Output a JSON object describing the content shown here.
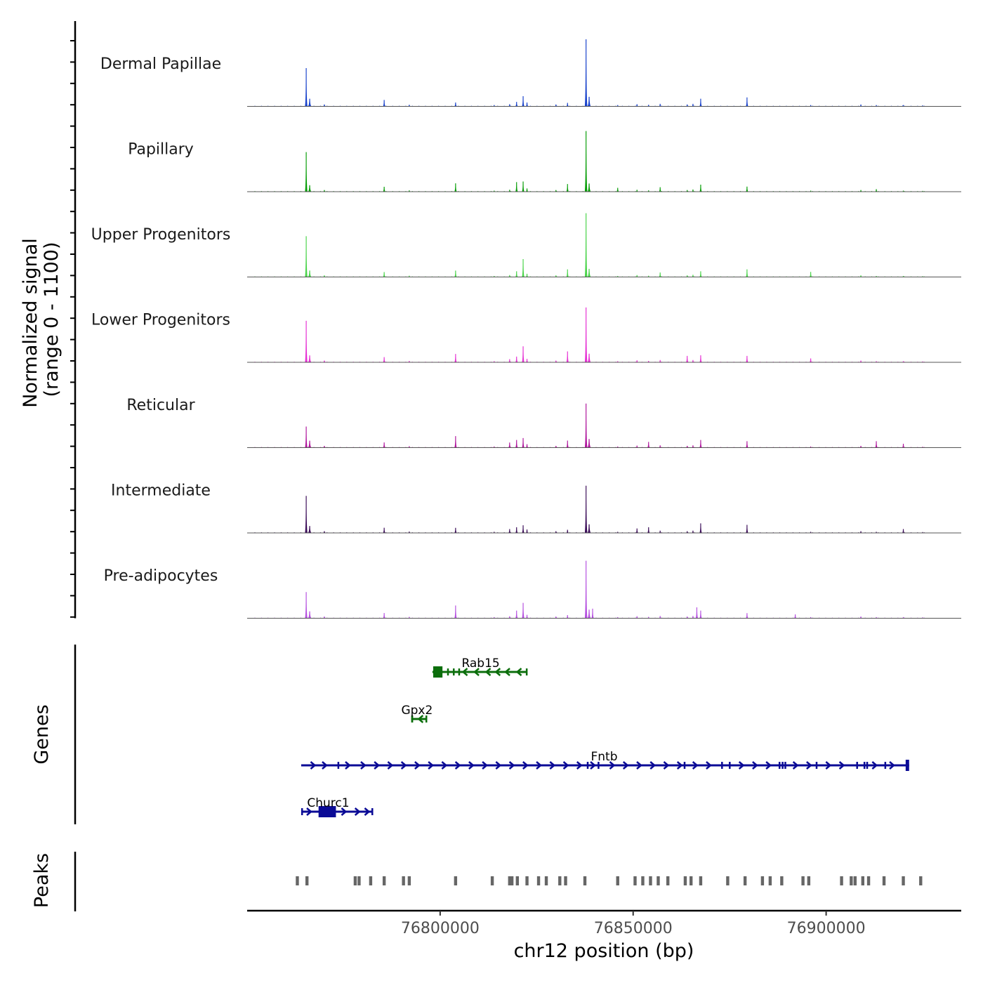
{
  "chart_data": {
    "type": "area",
    "title": "",
    "ylabel_line1": "Normalized signal",
    "ylabel_line2": "(range 0 - 1100)",
    "ylim": [
      0,
      1100
    ],
    "xlabel": "chr12 position (bp)",
    "xlim": [
      76750000,
      76935000
    ],
    "xticks": [
      {
        "value": 76800000,
        "label": "76800000"
      },
      {
        "value": 76850000,
        "label": "76850000"
      },
      {
        "value": 76900000,
        "label": "76900000"
      }
    ],
    "genes_label": "Genes",
    "peaks_label": "Peaks",
    "peak_template": [
      {
        "pos": 76765300,
        "h": 1000,
        "w": 350
      },
      {
        "pos": 76766200,
        "h": 120,
        "w": 500
      },
      {
        "pos": 76770000,
        "h": 30,
        "w": 400
      },
      {
        "pos": 76785500,
        "h": 90,
        "w": 250
      },
      {
        "pos": 76792000,
        "h": 25,
        "w": 250
      },
      {
        "pos": 76804000,
        "h": 60,
        "w": 250
      },
      {
        "pos": 76814000,
        "h": 20,
        "w": 250
      },
      {
        "pos": 76818000,
        "h": 35,
        "w": 300
      },
      {
        "pos": 76819800,
        "h": 70,
        "w": 300
      },
      {
        "pos": 76821500,
        "h": 110,
        "w": 350
      },
      {
        "pos": 76822500,
        "h": 60,
        "w": 300
      },
      {
        "pos": 76830000,
        "h": 30,
        "w": 250
      },
      {
        "pos": 76833000,
        "h": 55,
        "w": 250
      },
      {
        "pos": 76837800,
        "h": 1050,
        "w": 380
      },
      {
        "pos": 76838600,
        "h": 150,
        "w": 500
      },
      {
        "pos": 76846000,
        "h": 20,
        "w": 250
      },
      {
        "pos": 76851000,
        "h": 35,
        "w": 250
      },
      {
        "pos": 76854000,
        "h": 25,
        "w": 250
      },
      {
        "pos": 76857000,
        "h": 40,
        "w": 250
      },
      {
        "pos": 76864000,
        "h": 30,
        "w": 250
      },
      {
        "pos": 76865500,
        "h": 40,
        "w": 250
      },
      {
        "pos": 76867500,
        "h": 120,
        "w": 250
      },
      {
        "pos": 76879500,
        "h": 140,
        "w": 250
      },
      {
        "pos": 76896000,
        "h": 20,
        "w": 250
      },
      {
        "pos": 76909000,
        "h": 30,
        "w": 300
      },
      {
        "pos": 76913000,
        "h": 20,
        "w": 250
      },
      {
        "pos": 76920000,
        "h": 20,
        "w": 250
      },
      {
        "pos": 76925000,
        "h": 15,
        "w": 250
      }
    ],
    "series": [
      {
        "name": "Dermal Papillae",
        "color": "#1b44cc",
        "scale": 1.0,
        "overrides": {
          "76837800": 1050,
          "76765300": 600,
          "76821500": 160,
          "76785500": 100,
          "76919900": 15
        }
      },
      {
        "name": "Papillary",
        "color": "#0a9f0a",
        "scale": 0.85,
        "overrides": {
          "76837800": 950,
          "76765300": 620,
          "76819800": 150,
          "76821500": 160,
          "76804000": 130,
          "76833000": 120,
          "76846000": 60,
          "76857000": 70,
          "76867500": 110,
          "76879500": 80,
          "76913000": 40
        }
      },
      {
        "name": "Upper Progenitors",
        "color": "#4cd44c",
        "scale": 0.85,
        "overrides": {
          "76837800": 1000,
          "76765300": 640,
          "76821500": 280,
          "76819800": 90,
          "76804000": 100,
          "76833000": 120,
          "76857000": 70,
          "76867500": 90,
          "76896000": 80
        }
      },
      {
        "name": "Lower Progenitors",
        "color": "#e632d4",
        "scale": 0.9,
        "overrides": {
          "76837800": 860,
          "76765300": 650,
          "76821500": 250,
          "76819800": 90,
          "76818000": 50,
          "76804000": 130,
          "76833000": 170,
          "76864000": 100,
          "76867500": 110,
          "76879500": 100,
          "76896000": 60
        }
      },
      {
        "name": "Reticular",
        "color": "#b0189e",
        "scale": 0.9,
        "overrides": {
          "76837800": 690,
          "76765300": 330,
          "76821500": 150,
          "76819800": 120,
          "76818000": 80,
          "76804000": 180,
          "76833000": 110,
          "76854000": 90,
          "76867500": 120,
          "76879500": 100,
          "76913000": 100,
          "76920000": 60
        }
      },
      {
        "name": "Intermediate",
        "color": "#3d0f5a",
        "scale": 0.9,
        "overrides": {
          "76837800": 740,
          "76765300": 580,
          "76821500": 120,
          "76819800": 90,
          "76818000": 60,
          "76804000": 80,
          "76851000": 70,
          "76854000": 90,
          "76867500": 150,
          "76920000": 60
        }
      },
      {
        "name": "Pre-adipocytes",
        "color": "#b652e0",
        "scale": 0.9,
        "overrides": {
          "76837800": 900,
          "76765300": 410,
          "76821500": 240,
          "76819800": 120,
          "76804000": 200,
          "76839500": 150,
          "76866500": 170,
          "76867500": 120,
          "76879500": 80,
          "76892000": 60
        }
      }
    ],
    "genes": [
      {
        "name": "Rab15",
        "strand": "-",
        "start": 76798000,
        "end": 76822500,
        "color": "#0c6e0c",
        "exons": [
          {
            "start": 76798200,
            "end": 76800600,
            "h": "tall"
          },
          {
            "start": 76801800,
            "end": 76802100,
            "h": "mid"
          },
          {
            "start": 76803300,
            "end": 76803600,
            "h": "mid"
          },
          {
            "start": 76804700,
            "end": 76805000,
            "h": "mid"
          },
          {
            "start": 76822200,
            "end": 76822500,
            "h": "mid"
          }
        ],
        "arrows": [
          76806500,
          76809500,
          76812500,
          76815000,
          76817500,
          76820500
        ]
      },
      {
        "name": "Gpx2",
        "strand": "-",
        "start": 76792500,
        "end": 76796500,
        "color": "#0c6e0c",
        "exons": [
          {
            "start": 76792500,
            "end": 76793000,
            "h": "mid"
          },
          {
            "start": 76796200,
            "end": 76796500,
            "h": "mid"
          }
        ],
        "arrows": [
          76795000
        ]
      },
      {
        "name": "Fntb",
        "strand": "+",
        "start": 76764000,
        "end": 76921500,
        "color": "#0b0b96",
        "exons": [
          {
            "start": 76773400,
            "end": 76773600,
            "h": "mid"
          },
          {
            "start": 76838000,
            "end": 76838200,
            "h": "mid"
          },
          {
            "start": 76840800,
            "end": 76841000,
            "h": "mid"
          },
          {
            "start": 76863100,
            "end": 76863300,
            "h": "mid"
          },
          {
            "start": 76872800,
            "end": 76873000,
            "h": "mid"
          },
          {
            "start": 76874800,
            "end": 76875000,
            "h": "mid"
          },
          {
            "start": 76887700,
            "end": 76887900,
            "h": "mid"
          },
          {
            "start": 76888500,
            "end": 76888700,
            "h": "mid"
          },
          {
            "start": 76889200,
            "end": 76889400,
            "h": "mid"
          },
          {
            "start": 76897300,
            "end": 76897500,
            "h": "mid"
          },
          {
            "start": 76907800,
            "end": 76908000,
            "h": "mid"
          },
          {
            "start": 76909700,
            "end": 76909900,
            "h": "mid"
          },
          {
            "start": 76910400,
            "end": 76910600,
            "h": "mid"
          },
          {
            "start": 76915100,
            "end": 76915300,
            "h": "mid"
          },
          {
            "start": 76920600,
            "end": 76921500,
            "h": "tall"
          }
        ],
        "arrows": [
          76767000,
          76770000,
          76776000,
          76780000,
          76783500,
          76787000,
          76790500,
          76794000,
          76797500,
          76801000,
          76804500,
          76808000,
          76811500,
          76815000,
          76818500,
          76822000,
          76825500,
          76829000,
          76832500,
          76836000,
          76839500,
          76844500,
          76848000,
          76851500,
          76855000,
          76858500,
          76862000,
          76866000,
          76869500,
          76878000,
          76881500,
          76885000,
          76892000,
          76895500,
          76900500,
          76904000,
          76912500,
          76917000
        ]
      },
      {
        "name": "Churc1",
        "strand": "+",
        "start": 76764000,
        "end": 76782500,
        "color": "#0b0b96",
        "exons": [
          {
            "start": 76764000,
            "end": 76764400,
            "h": "mid"
          },
          {
            "start": 76768500,
            "end": 76773000,
            "h": "tall"
          },
          {
            "start": 76782200,
            "end": 76782500,
            "h": "mid"
          }
        ],
        "arrows": [
          76766000,
          76775000,
          76778500,
          76781000
        ]
      }
    ],
    "peaks": [
      76763000,
      76765500,
      76778000,
      76779000,
      76782000,
      76785500,
      76790500,
      76792000,
      76804000,
      76813500,
      76818000,
      76818600,
      76820000,
      76822500,
      76825500,
      76827500,
      76831000,
      76832500,
      76837500,
      76846000,
      76850500,
      76852500,
      76854500,
      76856500,
      76859000,
      76863500,
      76865000,
      76867500,
      76874500,
      76879000,
      76883500,
      76885500,
      76888500,
      76894000,
      76895500,
      76904000,
      76906500,
      76907500,
      76909500,
      76911000,
      76915000,
      76920000,
      76924500
    ]
  }
}
